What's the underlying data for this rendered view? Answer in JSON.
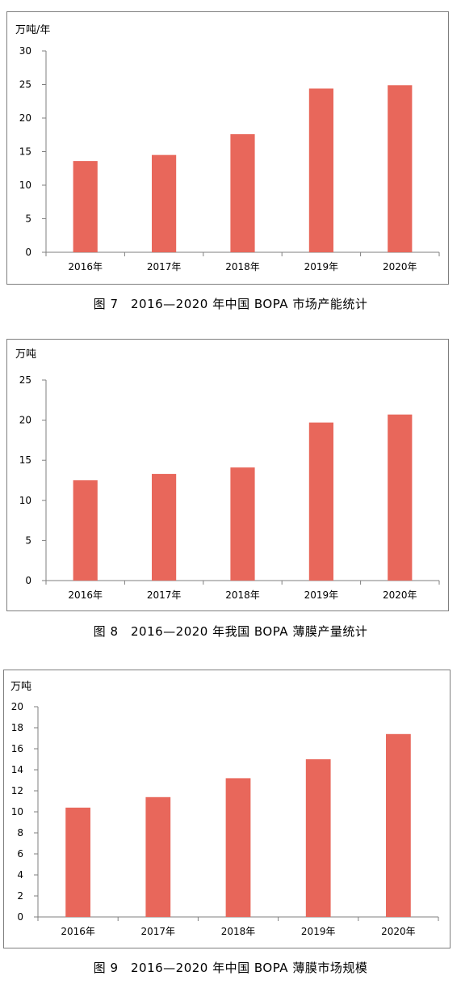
{
  "charts": [
    {
      "caption": "图 7　2016—2020 年中国 BOPA 市场产能统计"
    },
    {
      "caption": "图 8　2016—2020 年我国 BOPA 薄膜产量统计"
    },
    {
      "caption": "图 9　2016—2020 年中国 BOPA 薄膜市场规模"
    }
  ],
  "chart_data": [
    {
      "type": "bar",
      "title": "",
      "ylabel": "万吨/年",
      "xlabel": "",
      "categories": [
        "2016年",
        "2017年",
        "2018年",
        "2019年",
        "2020年"
      ],
      "values": [
        13.6,
        14.5,
        17.6,
        24.4,
        24.9
      ],
      "ylim": [
        0,
        30
      ],
      "yticks": [
        0,
        5,
        10,
        15,
        20,
        25,
        30
      ],
      "bar_color": "#E8675B",
      "grid": false
    },
    {
      "type": "bar",
      "title": "",
      "ylabel": "万吨",
      "xlabel": "",
      "categories": [
        "2016年",
        "2017年",
        "2018年",
        "2019年",
        "2020年"
      ],
      "values": [
        12.5,
        13.3,
        14.1,
        19.7,
        20.7
      ],
      "ylim": [
        0,
        25
      ],
      "yticks": [
        0,
        5,
        10,
        15,
        20,
        25
      ],
      "bar_color": "#E8675B",
      "grid": false
    },
    {
      "type": "bar",
      "title": "",
      "ylabel": "万吨",
      "xlabel": "",
      "categories": [
        "2016年",
        "2017年",
        "2018年",
        "2019年",
        "2020年"
      ],
      "values": [
        10.4,
        11.4,
        13.2,
        15.0,
        17.4
      ],
      "ylim": [
        0,
        20
      ],
      "yticks": [
        0,
        2,
        4,
        6,
        8,
        10,
        12,
        14,
        16,
        18,
        20
      ],
      "bar_color": "#E8675B",
      "grid": false
    }
  ]
}
